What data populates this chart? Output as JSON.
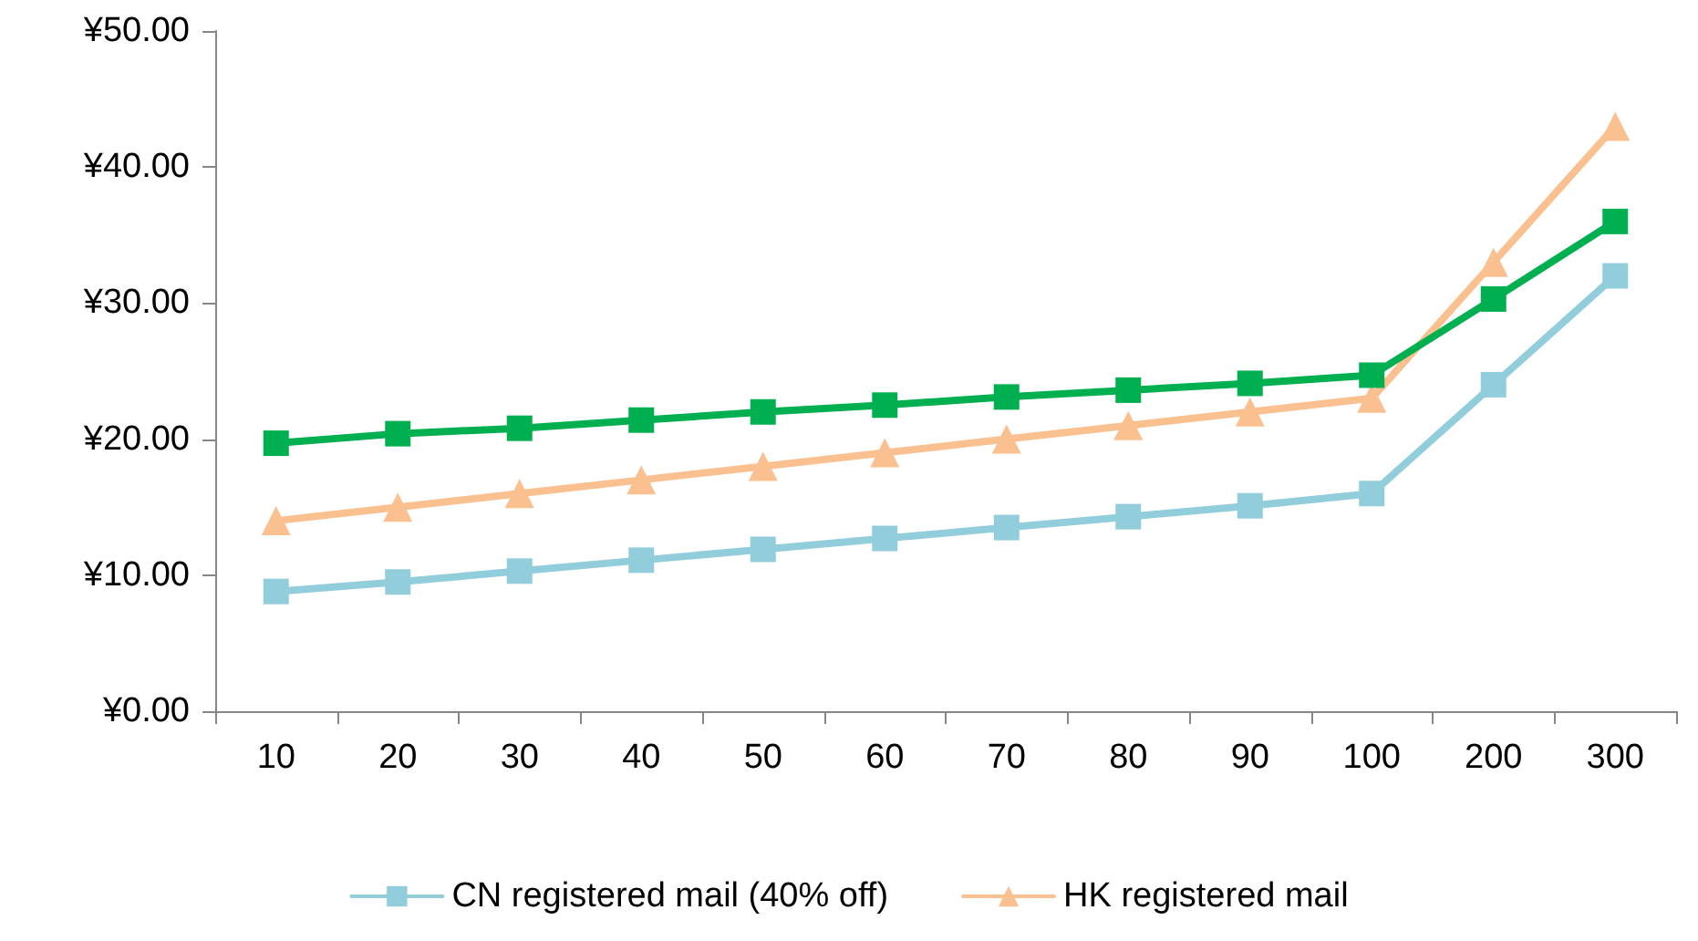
{
  "chart_data": {
    "type": "line",
    "categories": [
      "10",
      "20",
      "30",
      "40",
      "50",
      "60",
      "70",
      "80",
      "90",
      "100",
      "200",
      "300"
    ],
    "series": [
      {
        "name": "CN registered mail (40% off)",
        "color": "#92cddc",
        "marker": "square",
        "values": [
          8.8,
          9.5,
          10.3,
          11.1,
          11.9,
          12.7,
          13.5,
          14.3,
          15.1,
          16.0,
          24.0,
          32.0
        ]
      },
      {
        "name": "HK registered mail",
        "color": "#fac090",
        "marker": "triangle",
        "values": [
          14,
          15,
          16,
          17,
          18,
          19,
          20,
          21,
          22,
          23,
          33,
          43
        ]
      },
      {
        "color": "#00b050",
        "marker": "square",
        "values": [
          19.7,
          20.4,
          20.8,
          21.4,
          22.0,
          22.5,
          23.1,
          23.6,
          24.1,
          24.7,
          30.3,
          36.0
        ]
      }
    ],
    "ylim": [
      0,
      50
    ],
    "yticks": [
      {
        "value": 0,
        "label": "¥0.00"
      },
      {
        "value": 10,
        "label": "¥10.00"
      },
      {
        "value": 20,
        "label": "¥20.00"
      },
      {
        "value": 30,
        "label": "¥30.00"
      },
      {
        "value": 40,
        "label": "¥40.00"
      },
      {
        "value": 50,
        "label": "¥50.00"
      }
    ],
    "grid": false,
    "legend": "bottom",
    "line_style": "solid"
  }
}
